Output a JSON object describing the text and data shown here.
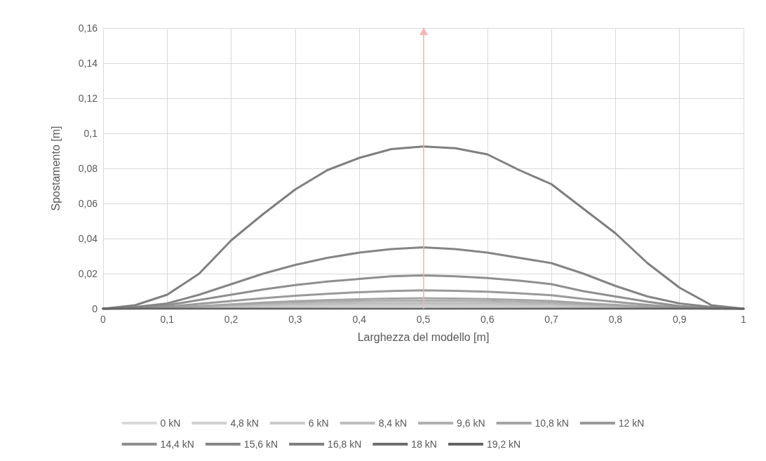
{
  "chart_data": {
    "type": "line",
    "xlabel": "Larghezza del modello [m]",
    "ylabel": "Spostamento [m]",
    "x": [
      0,
      0.05,
      0.1,
      0.15,
      0.2,
      0.25,
      0.3,
      0.35,
      0.4,
      0.45,
      0.5,
      0.55,
      0.6,
      0.65,
      0.7,
      0.75,
      0.8,
      0.85,
      0.9,
      0.95,
      1
    ],
    "xlim": [
      0,
      1
    ],
    "xticks": [
      {
        "value": 0,
        "label": "0"
      },
      {
        "value": 0.1,
        "label": "0,1"
      },
      {
        "value": 0.2,
        "label": "0,2"
      },
      {
        "value": 0.3,
        "label": "0,3"
      },
      {
        "value": 0.4,
        "label": "0,4"
      },
      {
        "value": 0.5,
        "label": "0,5"
      },
      {
        "value": 0.6,
        "label": "0,6"
      },
      {
        "value": 0.7,
        "label": "0,7"
      },
      {
        "value": 0.8,
        "label": "0,8"
      },
      {
        "value": 0.9,
        "label": "0,9"
      },
      {
        "value": 1,
        "label": "1"
      }
    ],
    "ylim": [
      0,
      0.16
    ],
    "yticks": [
      {
        "value": 0,
        "label": "0"
      },
      {
        "value": 0.02,
        "label": "0,02"
      },
      {
        "value": 0.04,
        "label": "0,04"
      },
      {
        "value": 0.06,
        "label": "0,06"
      },
      {
        "value": 0.08,
        "label": "0,08"
      },
      {
        "value": 0.1,
        "label": "0,1"
      },
      {
        "value": 0.12,
        "label": "0,12"
      },
      {
        "value": 0.14,
        "label": "0,14"
      },
      {
        "value": 0.16,
        "label": "0,16"
      }
    ],
    "grid": true,
    "legend": "bottom",
    "marker": "none",
    "line_style": "solid",
    "ref_lines": [
      {
        "axis": "x",
        "value": 0.5,
        "color": "#f4b6b6"
      }
    ],
    "series": [
      {
        "name": "0 kN",
        "color": "#d9d9d9",
        "values": [
          null,
          null,
          null,
          null,
          null,
          null,
          null,
          null,
          null,
          null,
          null,
          null,
          null,
          null,
          null,
          null,
          null,
          null,
          null,
          null,
          null
        ]
      },
      {
        "name": "4,8 kN",
        "color": "#d0d0d0",
        "values": [
          0,
          0.0001,
          0.0003,
          0.0005,
          0.0008,
          0.001,
          0.0011,
          0.0012,
          0.0013,
          0.0014,
          0.0014,
          0.0014,
          0.0013,
          0.0012,
          0.0011,
          0.0008,
          0.0006,
          0.0003,
          0.0001,
          0,
          0
        ]
      },
      {
        "name": "6 kN",
        "color": "#c8c8c8",
        "values": [
          0,
          0.0001,
          0.0004,
          0.0008,
          0.0012,
          0.0015,
          0.0018,
          0.002,
          0.0021,
          0.0022,
          0.0022,
          0.0022,
          0.0021,
          0.0019,
          0.0017,
          0.0012,
          0.0009,
          0.0005,
          0.0002,
          0,
          0
        ]
      },
      {
        "name": "8,4 kN",
        "color": "#bdbdbd",
        "values": [
          0,
          0.0001,
          0.0005,
          0.0011,
          0.0017,
          0.0022,
          0.0026,
          0.0029,
          0.0031,
          0.0032,
          0.0033,
          0.0032,
          0.0031,
          0.0028,
          0.0025,
          0.0018,
          0.0013,
          0.0007,
          0.0003,
          0.0001,
          0
        ]
      },
      {
        "name": "9,6 kN",
        "color": "#b0b0b0",
        "values": [
          0,
          0.0002,
          0.0006,
          0.0014,
          0.0022,
          0.003,
          0.0036,
          0.004,
          0.0043,
          0.0045,
          0.0046,
          0.0045,
          0.0043,
          0.0039,
          0.0034,
          0.0025,
          0.0018,
          0.001,
          0.0004,
          0.0001,
          0
        ]
      },
      {
        "name": "10,8 kN",
        "color": "#a5a5a5",
        "values": [
          0,
          0.0002,
          0.0006,
          0.0015,
          0.0025,
          0.0035,
          0.0043,
          0.0049,
          0.0054,
          0.0058,
          0.006,
          0.0058,
          0.0055,
          0.005,
          0.0044,
          0.0032,
          0.0022,
          0.0012,
          0.0005,
          0.0002,
          0
        ]
      },
      {
        "name": "12 kN",
        "color": "#9a9a9a",
        "values": [
          0,
          0.0003,
          0.0011,
          0.0028,
          0.0044,
          0.006,
          0.0074,
          0.0085,
          0.0094,
          0.0101,
          0.0105,
          0.0102,
          0.0097,
          0.0088,
          0.0077,
          0.0056,
          0.0039,
          0.0022,
          0.0008,
          0.0003,
          0
        ]
      },
      {
        "name": "14,4 kN",
        "color": "#8f8f8f",
        "values": [
          0,
          0.0005,
          0.002,
          0.005,
          0.008,
          0.011,
          0.0135,
          0.0155,
          0.017,
          0.0185,
          0.019,
          0.0185,
          0.0175,
          0.016,
          0.014,
          0.01,
          0.007,
          0.004,
          0.0015,
          0.0005,
          0
        ]
      },
      {
        "name": "15,6 kN",
        "color": "#858585",
        "values": [
          0,
          0.001,
          0.003,
          0.008,
          0.014,
          0.02,
          0.025,
          0.029,
          0.032,
          0.034,
          0.035,
          0.034,
          0.032,
          0.029,
          0.026,
          0.02,
          0.013,
          0.007,
          0.003,
          0.001,
          0
        ]
      },
      {
        "name": "16,8 kN",
        "color": "#7f7f7f",
        "values": [
          0,
          0.002,
          0.008,
          0.02,
          0.039,
          0.054,
          0.068,
          0.079,
          0.086,
          0.091,
          0.0925,
          0.0915,
          0.088,
          0.079,
          0.071,
          0.057,
          0.043,
          0.026,
          0.012,
          0.002,
          0
        ]
      },
      {
        "name": "18 kN",
        "color": "#6f6f6f",
        "values": [
          null,
          null,
          null,
          null,
          null,
          null,
          null,
          null,
          null,
          null,
          null,
          null,
          null,
          null,
          null,
          null,
          null,
          null,
          null,
          null,
          null
        ]
      },
      {
        "name": "19,2 kN",
        "color": "#646464",
        "values": [
          0,
          0,
          0,
          0,
          0,
          0,
          0,
          0,
          0,
          0,
          0,
          0,
          0,
          0,
          0,
          0,
          0,
          0,
          0,
          0,
          0
        ]
      }
    ]
  }
}
